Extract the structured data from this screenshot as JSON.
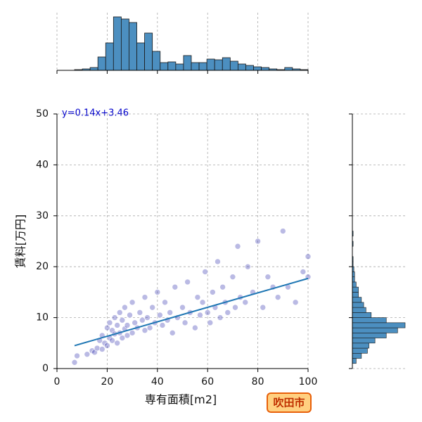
{
  "chart_data": {
    "type": "scatter",
    "annotation": "y=0.14x+3.46",
    "x_label": "専有面積[m2]",
    "y_label": "賃料[万円]",
    "badge": "吹田市",
    "xlim": [
      0,
      100
    ],
    "ylim": [
      0,
      50
    ],
    "xticks": [
      0,
      20,
      40,
      60,
      80,
      100
    ],
    "yticks": [
      0,
      10,
      20,
      30,
      40,
      50
    ],
    "grid": true,
    "color": "#1a1aa6",
    "x": [
      7,
      8,
      12,
      14,
      15,
      16,
      17,
      18,
      18,
      19,
      20,
      20,
      21,
      21,
      22,
      22,
      23,
      23,
      24,
      24,
      25,
      25,
      26,
      26,
      27,
      27,
      28,
      28,
      29,
      30,
      30,
      31,
      32,
      33,
      34,
      35,
      35,
      36,
      37,
      38,
      39,
      40,
      41,
      42,
      43,
      44,
      45,
      46,
      47,
      48,
      50,
      51,
      52,
      53,
      55,
      56,
      57,
      58,
      59,
      60,
      61,
      62,
      63,
      64,
      65,
      66,
      67,
      68,
      70,
      71,
      72,
      73,
      75,
      76,
      78,
      80,
      82,
      84,
      86,
      88,
      90,
      92,
      95,
      98,
      100,
      100
    ],
    "values": [
      1.2,
      2.5,
      2.8,
      3.5,
      3.2,
      4,
      5.5,
      3.8,
      6.5,
      5,
      4.5,
      8,
      6,
      9,
      5.5,
      7.5,
      6.8,
      10,
      5,
      8.5,
      7,
      11,
      6,
      9.5,
      7.8,
      12,
      8.5,
      6.5,
      10.5,
      7,
      13,
      9,
      8,
      11,
      9.5,
      7.5,
      14,
      10,
      8,
      12,
      9,
      15,
      10.5,
      8.5,
      13,
      9.5,
      11,
      7,
      16,
      10,
      12,
      9,
      17,
      11,
      8,
      14,
      10.5,
      13,
      19,
      11,
      9,
      15,
      12,
      21,
      10,
      16,
      13,
      11,
      18,
      12,
      24,
      14,
      13,
      20,
      15,
      25,
      12,
      18,
      16,
      14,
      27,
      16,
      13,
      19,
      22,
      18
    ],
    "fit_line": {
      "x": [
        7,
        100
      ],
      "values": [
        4.5,
        17.7
      ],
      "color": "#1f77b4"
    },
    "marginal_x": {
      "type": "histogram",
      "color": "#4c8fc0",
      "bins": [
        7,
        10.1,
        13.2,
        16.3,
        19.4,
        22.5,
        25.6,
        28.7,
        31.8,
        34.9,
        38,
        41.1,
        44.2,
        47.3,
        50.4,
        53.5,
        56.6,
        59.7,
        62.8,
        65.9,
        69,
        72.1,
        75.2,
        78.3,
        81.4,
        84.5,
        87.6,
        90.7,
        93.8,
        96.9,
        100
      ],
      "counts": [
        1,
        2,
        4,
        19,
        39,
        76,
        73,
        68,
        39,
        53,
        27,
        11,
        12,
        9,
        21,
        11,
        11,
        16,
        15,
        18,
        13,
        9,
        7,
        5,
        4,
        2,
        1,
        4,
        2,
        1
      ]
    },
    "marginal_y": {
      "type": "histogram",
      "color": "#4c8fc0",
      "bins": [
        1,
        2,
        3,
        4,
        5,
        6,
        7,
        8,
        9,
        10,
        11,
        12,
        13,
        14,
        15,
        16,
        17,
        18,
        19,
        20,
        21,
        22,
        23,
        24,
        25,
        26,
        27
      ],
      "counts": [
        5,
        12,
        20,
        22,
        30,
        45,
        60,
        70,
        45,
        25,
        18,
        15,
        12,
        8,
        8,
        5,
        3,
        3,
        2,
        1,
        1,
        0,
        0,
        1,
        0,
        1
      ]
    }
  }
}
